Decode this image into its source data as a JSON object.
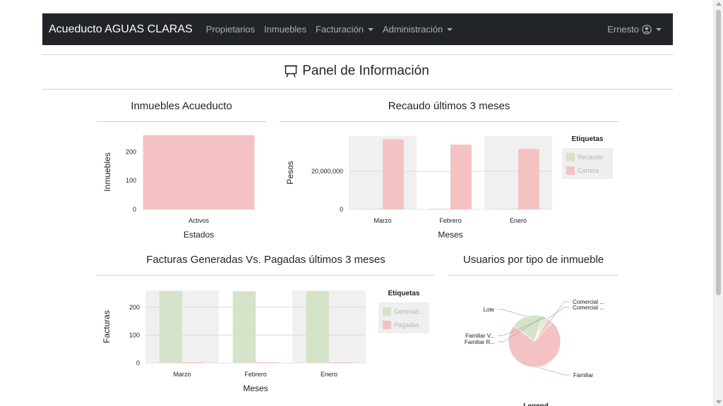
{
  "navbar": {
    "brand": "Acueducto AGUAS CLARAS",
    "items": [
      {
        "label": "Propietarios",
        "dropdown": false
      },
      {
        "label": "Inmuebles",
        "dropdown": false
      },
      {
        "label": "Facturación",
        "dropdown": true
      },
      {
        "label": "Administración",
        "dropdown": true
      }
    ],
    "user": "Ernesto",
    "user_icon": "user-circle-icon"
  },
  "page": {
    "title": "Panel de Información",
    "title_icon": "easel-icon"
  },
  "colors": {
    "pink": "#f4c2c2",
    "green": "#d5e3c9",
    "band": "#f0f0f0",
    "pie_blue": "#a9d5e8",
    "pie_yellow": "#ebe6a6"
  },
  "chart_data": [
    {
      "id": "inmuebles",
      "type": "bar",
      "title": "Inmuebles Acueducto",
      "categories": [
        "Activos"
      ],
      "series": [
        {
          "name": "",
          "values": [
            258
          ]
        }
      ],
      "xlabel": "Estados",
      "ylabel": "Inmuebles",
      "ylim": [
        0,
        260
      ],
      "yticks": [
        0,
        100,
        200
      ],
      "ytick_labels": [
        "0",
        "100",
        "200"
      ],
      "grid": false
    },
    {
      "id": "recaudo",
      "type": "bar",
      "title": "Recaudo últimos 3 meses",
      "categories": [
        "Marzo",
        "Febrero",
        "Enero"
      ],
      "series": [
        {
          "name": "Recaudo",
          "values": [
            0,
            0,
            0
          ]
        },
        {
          "name": "Cartera",
          "values": [
            36800000,
            34000000,
            31700000
          ]
        }
      ],
      "xlabel": "Meses",
      "ylabel": "Pesos",
      "ylim": [
        0,
        38500000
      ],
      "yticks": [
        0,
        20000000
      ],
      "ytick_labels": [
        "0",
        "20,000,000"
      ],
      "legend_title": "Etiquetas",
      "legend_position": "right",
      "grid": true
    },
    {
      "id": "facturas",
      "type": "bar",
      "title": "Facturas Generadas Vs. Pagadas últimos 3 meses",
      "categories": [
        "Marzo",
        "Febrero",
        "Enero"
      ],
      "series": [
        {
          "name": "Generad...",
          "values": [
            257,
            257,
            257
          ]
        },
        {
          "name": "Pagadas",
          "values": [
            0,
            0,
            0
          ]
        }
      ],
      "xlabel": "Meses",
      "ylabel": "Facturas",
      "ylim": [
        0,
        260
      ],
      "yticks": [
        0,
        100,
        200
      ],
      "ytick_labels": [
        "0",
        "100",
        "200"
      ],
      "legend_title": "Etiquetas",
      "legend_position": "right",
      "grid": true
    },
    {
      "id": "usuarios",
      "type": "pie",
      "title": "Usuarios por tipo de inmueble",
      "slices": [
        {
          "label": "Familiar",
          "value": 73
        },
        {
          "label": "Lote",
          "value": 20
        },
        {
          "label": "Familiar R...",
          "value": 1
        },
        {
          "label": "Familiar V...",
          "value": 2
        },
        {
          "label": "Comercial ...",
          "value": 1
        },
        {
          "label": "Comercial ...",
          "value": 3
        }
      ],
      "legend_title": "Legend"
    }
  ]
}
